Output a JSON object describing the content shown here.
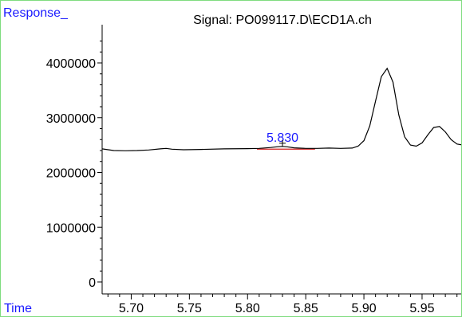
{
  "chart_data": {
    "type": "line",
    "title": "Signal: PO099117.D\\ECD1A.ch",
    "ylabel": "Response_",
    "xlabel": "Time",
    "xlim": [
      5.675,
      5.985
    ],
    "ylim": [
      0,
      4500000
    ],
    "x_ticks": [
      5.7,
      5.75,
      5.8,
      5.85,
      5.9,
      5.95
    ],
    "x_tick_labels": [
      "5.70",
      "5.75",
      "5.80",
      "5.85",
      "5.90",
      "5.95"
    ],
    "y_ticks": [
      0,
      1000000,
      2000000,
      3000000,
      4000000
    ],
    "y_tick_labels": [
      "0",
      "1000000",
      "2000000",
      "3000000",
      "4000000"
    ],
    "grid": false,
    "series": [
      {
        "color": "#000000",
        "x": [
          5.675,
          5.685,
          5.695,
          5.705,
          5.715,
          5.725,
          5.73,
          5.735,
          5.745,
          5.76,
          5.78,
          5.8,
          5.81,
          5.82,
          5.826,
          5.83,
          5.834,
          5.84,
          5.85,
          5.86,
          5.87,
          5.88,
          5.89,
          5.895,
          5.9,
          5.905,
          5.91,
          5.915,
          5.92,
          5.925,
          5.93,
          5.935,
          5.94,
          5.945,
          5.95,
          5.955,
          5.96,
          5.965,
          5.97,
          5.975,
          5.98,
          5.985
        ],
        "y": [
          2430000,
          2400000,
          2395000,
          2400000,
          2410000,
          2430000,
          2440000,
          2425000,
          2415000,
          2420000,
          2430000,
          2435000,
          2440000,
          2455000,
          2470000,
          2475000,
          2468000,
          2450000,
          2440000,
          2440000,
          2445000,
          2440000,
          2445000,
          2480000,
          2580000,
          2850000,
          3300000,
          3750000,
          3900000,
          3650000,
          3050000,
          2650000,
          2500000,
          2480000,
          2540000,
          2690000,
          2820000,
          2840000,
          2740000,
          2600000,
          2520000,
          2500000
        ]
      }
    ],
    "annotations": [
      {
        "text": "5.830",
        "x": 5.83,
        "y": 2475000,
        "color": "#1a1aff"
      }
    ],
    "integration_baseline": {
      "color": "#d22020",
      "x": [
        5.808,
        5.858
      ],
      "y": [
        2425000,
        2425000
      ]
    }
  }
}
